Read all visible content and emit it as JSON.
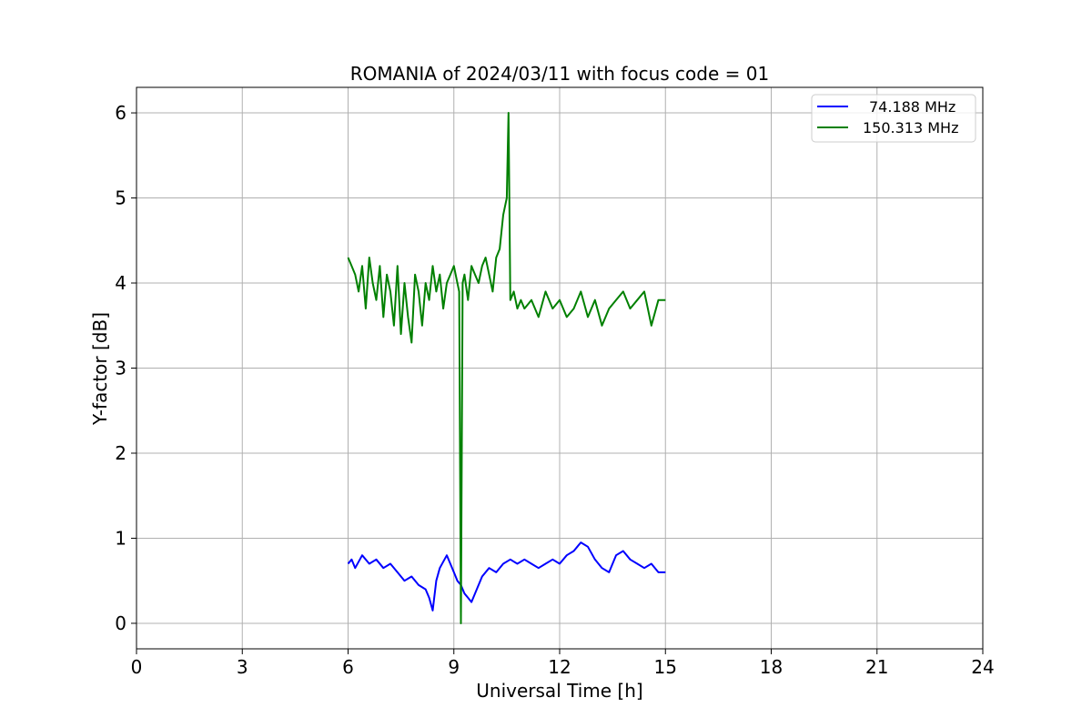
{
  "chart_data": {
    "type": "line",
    "title": "ROMANIA of 2024/03/11 with focus code = 01",
    "xlabel": "Universal Time [h]",
    "ylabel": "Y-factor [dB]",
    "xlim": [
      0,
      24
    ],
    "ylim": [
      -0.3,
      6.3
    ],
    "xticks": [
      0,
      3,
      6,
      9,
      12,
      15,
      18,
      21,
      24
    ],
    "yticks": [
      0,
      1,
      2,
      3,
      4,
      5,
      6
    ],
    "grid": true,
    "legend_position": "top-right",
    "series": [
      {
        "name": "74.188 MHz",
        "color": "#0000ff",
        "x": [
          6.0,
          6.1,
          6.2,
          6.4,
          6.6,
          6.8,
          7.0,
          7.2,
          7.4,
          7.6,
          7.8,
          8.0,
          8.2,
          8.3,
          8.4,
          8.5,
          8.6,
          8.8,
          9.0,
          9.1,
          9.2,
          9.3,
          9.4,
          9.5,
          9.6,
          9.8,
          10.0,
          10.2,
          10.4,
          10.6,
          10.8,
          11.0,
          11.2,
          11.4,
          11.6,
          11.8,
          12.0,
          12.2,
          12.4,
          12.6,
          12.8,
          13.0,
          13.2,
          13.4,
          13.6,
          13.8,
          14.0,
          14.2,
          14.4,
          14.6,
          14.8,
          15.0
        ],
        "y": [
          0.7,
          0.75,
          0.65,
          0.8,
          0.7,
          0.75,
          0.65,
          0.7,
          0.6,
          0.5,
          0.55,
          0.45,
          0.4,
          0.3,
          0.15,
          0.5,
          0.65,
          0.8,
          0.6,
          0.5,
          0.45,
          0.35,
          0.3,
          0.25,
          0.35,
          0.55,
          0.65,
          0.6,
          0.7,
          0.75,
          0.7,
          0.75,
          0.7,
          0.65,
          0.7,
          0.75,
          0.7,
          0.8,
          0.85,
          0.95,
          0.9,
          0.75,
          0.65,
          0.6,
          0.8,
          0.85,
          0.75,
          0.7,
          0.65,
          0.7,
          0.6,
          0.6
        ]
      },
      {
        "name": "150.313 MHz",
        "color": "#008000",
        "x": [
          6.0,
          6.1,
          6.2,
          6.3,
          6.4,
          6.5,
          6.6,
          6.7,
          6.8,
          6.9,
          7.0,
          7.1,
          7.2,
          7.3,
          7.4,
          7.5,
          7.6,
          7.7,
          7.8,
          7.9,
          8.0,
          8.1,
          8.2,
          8.3,
          8.4,
          8.5,
          8.6,
          8.7,
          8.8,
          8.9,
          9.0,
          9.1,
          9.15,
          9.2,
          9.25,
          9.3,
          9.4,
          9.5,
          9.6,
          9.7,
          9.8,
          9.9,
          10.0,
          10.1,
          10.2,
          10.3,
          10.4,
          10.5,
          10.55,
          10.6,
          10.7,
          10.8,
          10.9,
          11.0,
          11.2,
          11.4,
          11.6,
          11.8,
          12.0,
          12.2,
          12.4,
          12.6,
          12.8,
          13.0,
          13.2,
          13.4,
          13.6,
          13.8,
          14.0,
          14.2,
          14.4,
          14.5,
          14.6,
          14.8,
          15.0
        ],
        "y": [
          4.3,
          4.2,
          4.1,
          3.9,
          4.2,
          3.7,
          4.3,
          4.0,
          3.8,
          4.2,
          3.6,
          4.1,
          3.9,
          3.5,
          4.2,
          3.4,
          4.0,
          3.6,
          3.3,
          4.1,
          3.9,
          3.5,
          4.0,
          3.8,
          4.2,
          3.9,
          4.1,
          3.7,
          4.0,
          4.1,
          4.2,
          4.0,
          3.9,
          0.0,
          4.0,
          4.1,
          3.8,
          4.2,
          4.1,
          4.0,
          4.2,
          4.3,
          4.1,
          3.9,
          4.3,
          4.4,
          4.8,
          5.0,
          6.0,
          3.8,
          3.9,
          3.7,
          3.8,
          3.7,
          3.8,
          3.6,
          3.9,
          3.7,
          3.8,
          3.6,
          3.7,
          3.9,
          3.6,
          3.8,
          3.5,
          3.7,
          3.8,
          3.9,
          3.7,
          3.8,
          3.9,
          3.7,
          3.5,
          3.8,
          3.8
        ]
      }
    ]
  }
}
